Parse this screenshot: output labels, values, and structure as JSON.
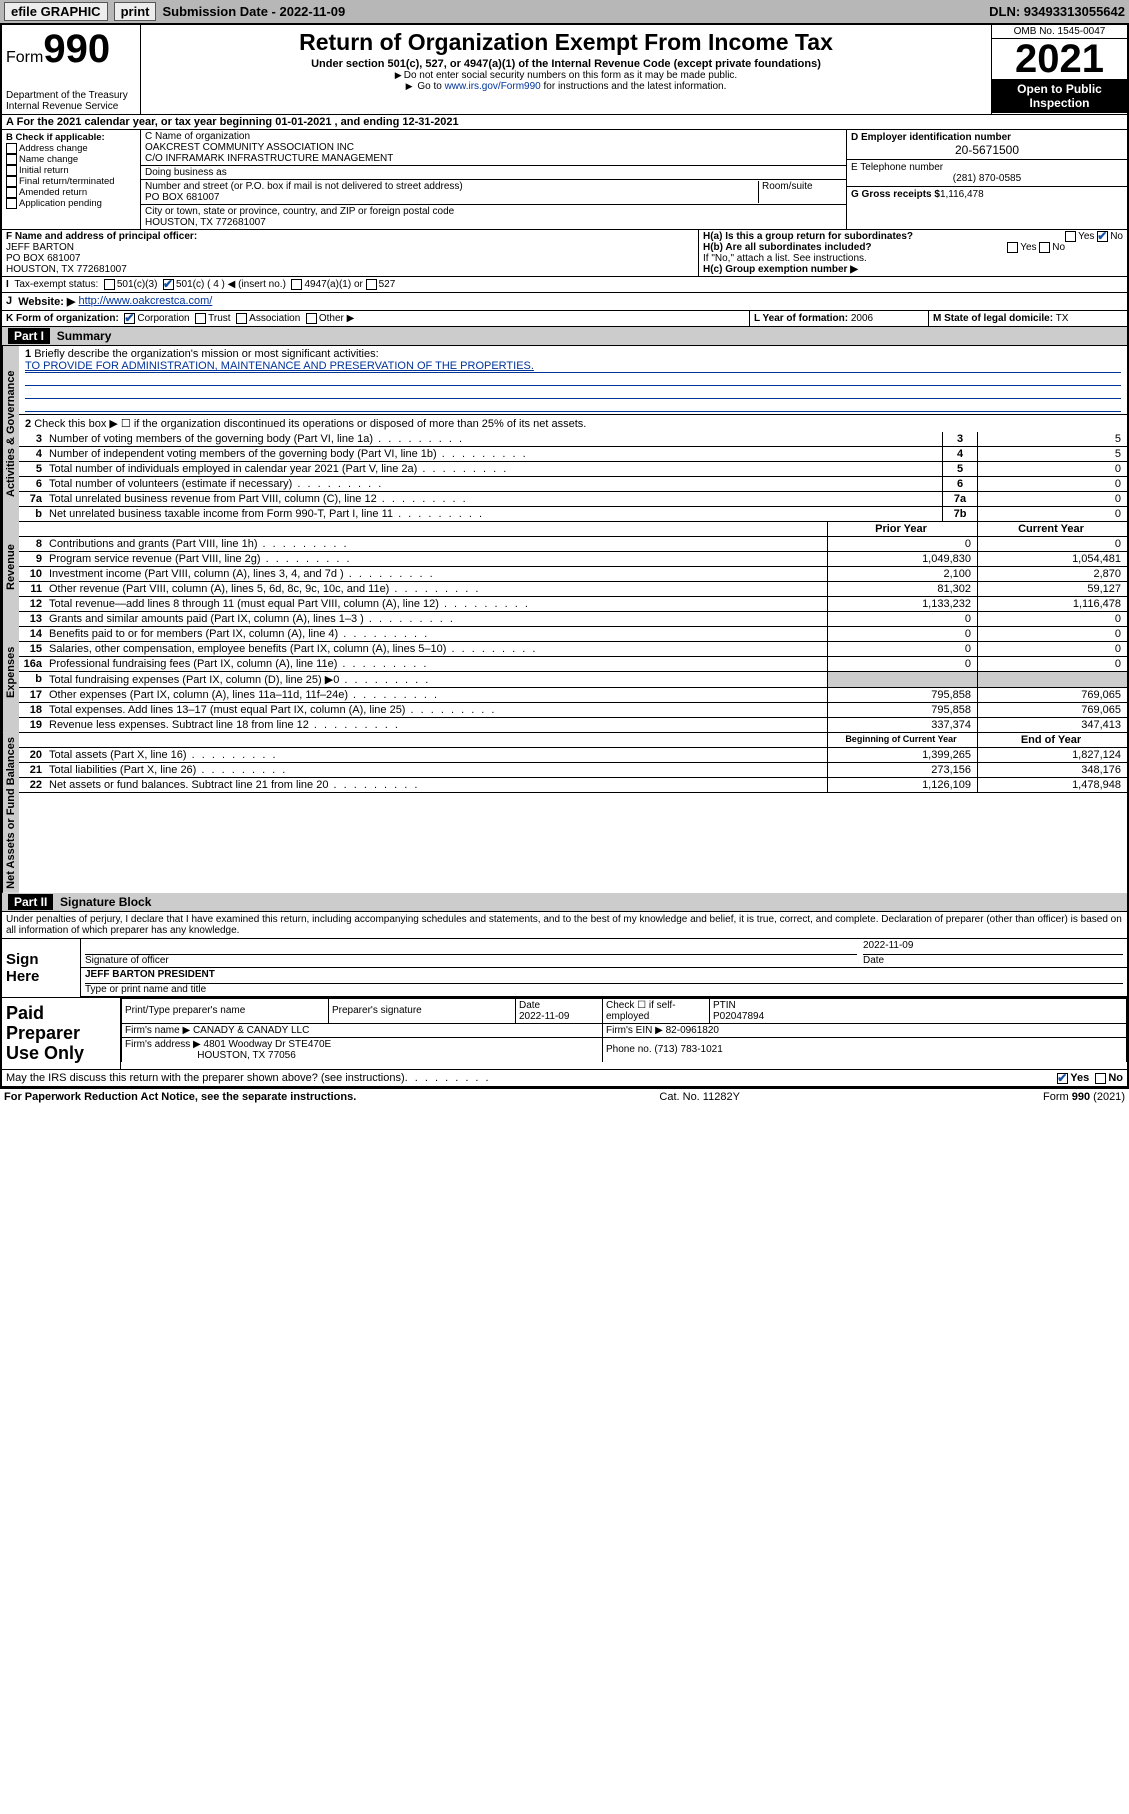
{
  "topbar": {
    "efile": "efile GRAPHIC",
    "print": "print",
    "sub_lbl": "Submission Date - 2022-11-09",
    "dln": "DLN: 93493313055642"
  },
  "header": {
    "form": "Form",
    "formno": "990",
    "dept": "Department of the Treasury",
    "irs": "Internal Revenue Service",
    "title": "Return of Organization Exempt From Income Tax",
    "sub1": "Under section 501(c), 527, or 4947(a)(1) of the Internal Revenue Code (except private foundations)",
    "sub2": "Do not enter social security numbers on this form as it may be made public.",
    "sub3_pre": "Go to ",
    "sub3_link": "www.irs.gov/Form990",
    "sub3_post": " for instructions and the latest information.",
    "omb": "OMB No. 1545-0047",
    "year": "2021",
    "inspect": "Open to Public Inspection"
  },
  "a_line": "For the 2021 calendar year, or tax year beginning 01-01-2021   , and ending 12-31-2021",
  "b": {
    "hdr": "B Check if applicable:",
    "addr": "Address change",
    "name": "Name change",
    "init": "Initial return",
    "final": "Final return/terminated",
    "amend": "Amended return",
    "app": "Application pending"
  },
  "c": {
    "lbl": "C Name of organization",
    "name1": "OAKCREST COMMUNITY ASSOCIATION INC",
    "name2": "C/O INFRAMARK INFRASTRUCTURE MANAGEMENT",
    "dba": "Doing business as",
    "street_lbl": "Number and street (or P.O. box if mail is not delivered to street address)",
    "room_lbl": "Room/suite",
    "street": "PO BOX 681007",
    "city_lbl": "City or town, state or province, country, and ZIP or foreign postal code",
    "city": "HOUSTON, TX  772681007"
  },
  "d": {
    "lbl": "D Employer identification number",
    "val": "20-5671500"
  },
  "e": {
    "lbl": "E Telephone number",
    "val": "(281) 870-0585"
  },
  "g": {
    "lbl": "G Gross receipts $",
    "val": "1,116,478"
  },
  "f": {
    "lbl": "F  Name and address of principal officer:",
    "name": "JEFF BARTON",
    "addr1": "PO BOX 681007",
    "addr2": "HOUSTON, TX  772681007"
  },
  "h": {
    "a": "H(a)  Is this a group return for subordinates?",
    "b": "H(b)  Are all subordinates included?",
    "bnote": "If \"No,\" attach a list. See instructions.",
    "c": "H(c)  Group exemption number ▶"
  },
  "i": {
    "lbl": "Tax-exempt status:",
    "c3": "501(c)(3)",
    "c4": "501(c) ( 4 ) ◀ (insert no.)",
    "a1": "4947(a)(1) or",
    "s527": "527"
  },
  "j": {
    "lbl": "Website: ▶",
    "val": "http://www.oakcrestca.com/"
  },
  "k": {
    "lbl": "K Form of organization:",
    "corp": "Corporation",
    "trust": "Trust",
    "assoc": "Association",
    "other": "Other ▶"
  },
  "l": {
    "lbl": "L Year of formation:",
    "val": "2006"
  },
  "m": {
    "lbl": "M State of legal domicile:",
    "val": "TX"
  },
  "part1": {
    "hdr": "Part I",
    "title": "Summary"
  },
  "tabs": {
    "gov": "Activities & Governance",
    "rev": "Revenue",
    "exp": "Expenses",
    "net": "Net Assets or Fund Balances"
  },
  "l1": {
    "lbl": "Briefly describe the organization's mission or most significant activities:",
    "val": "TO PROVIDE FOR ADMINISTRATION, MAINTENANCE AND PRESERVATION OF THE PROPERTIES."
  },
  "l2": "Check this box ▶ ☐  if the organization discontinued its operations or disposed of more than 25% of its net assets.",
  "lines_gov": [
    {
      "n": "3",
      "t": "Number of voting members of the governing body (Part VI, line 1a)",
      "b": "3",
      "v": "5"
    },
    {
      "n": "4",
      "t": "Number of independent voting members of the governing body (Part VI, line 1b)",
      "b": "4",
      "v": "5"
    },
    {
      "n": "5",
      "t": "Total number of individuals employed in calendar year 2021 (Part V, line 2a)",
      "b": "5",
      "v": "0"
    },
    {
      "n": "6",
      "t": "Total number of volunteers (estimate if necessary)",
      "b": "6",
      "v": "0"
    },
    {
      "n": "7a",
      "t": "Total unrelated business revenue from Part VIII, column (C), line 12",
      "b": "7a",
      "v": "0"
    },
    {
      "n": "b",
      "t": "Net unrelated business taxable income from Form 990-T, Part I, line 11",
      "b": "7b",
      "v": "0"
    }
  ],
  "col_hdr": {
    "prior": "Prior Year",
    "curr": "Current Year"
  },
  "lines_rev": [
    {
      "n": "8",
      "t": "Contributions and grants (Part VIII, line 1h)",
      "p": "0",
      "c": "0"
    },
    {
      "n": "9",
      "t": "Program service revenue (Part VIII, line 2g)",
      "p": "1,049,830",
      "c": "1,054,481"
    },
    {
      "n": "10",
      "t": "Investment income (Part VIII, column (A), lines 3, 4, and 7d )",
      "p": "2,100",
      "c": "2,870"
    },
    {
      "n": "11",
      "t": "Other revenue (Part VIII, column (A), lines 5, 6d, 8c, 9c, 10c, and 11e)",
      "p": "81,302",
      "c": "59,127"
    },
    {
      "n": "12",
      "t": "Total revenue—add lines 8 through 11 (must equal Part VIII, column (A), line 12)",
      "p": "1,133,232",
      "c": "1,116,478"
    }
  ],
  "lines_exp": [
    {
      "n": "13",
      "t": "Grants and similar amounts paid (Part IX, column (A), lines 1–3 )",
      "p": "0",
      "c": "0"
    },
    {
      "n": "14",
      "t": "Benefits paid to or for members (Part IX, column (A), line 4)",
      "p": "0",
      "c": "0"
    },
    {
      "n": "15",
      "t": "Salaries, other compensation, employee benefits (Part IX, column (A), lines 5–10)",
      "p": "0",
      "c": "0"
    },
    {
      "n": "16a",
      "t": "Professional fundraising fees (Part IX, column (A), line 11e)",
      "p": "0",
      "c": "0"
    },
    {
      "n": "b",
      "t": "Total fundraising expenses (Part IX, column (D), line 25) ▶0",
      "p": "",
      "c": "",
      "shade": true
    },
    {
      "n": "17",
      "t": "Other expenses (Part IX, column (A), lines 11a–11d, 11f–24e)",
      "p": "795,858",
      "c": "769,065"
    },
    {
      "n": "18",
      "t": "Total expenses. Add lines 13–17 (must equal Part IX, column (A), line 25)",
      "p": "795,858",
      "c": "769,065"
    },
    {
      "n": "19",
      "t": "Revenue less expenses. Subtract line 18 from line 12",
      "p": "337,374",
      "c": "347,413"
    }
  ],
  "col_hdr2": {
    "beg": "Beginning of Current Year",
    "end": "End of Year"
  },
  "lines_net": [
    {
      "n": "20",
      "t": "Total assets (Part X, line 16)",
      "p": "1,399,265",
      "c": "1,827,124"
    },
    {
      "n": "21",
      "t": "Total liabilities (Part X, line 26)",
      "p": "273,156",
      "c": "348,176"
    },
    {
      "n": "22",
      "t": "Net assets or fund balances. Subtract line 21 from line 20",
      "p": "1,126,109",
      "c": "1,478,948"
    }
  ],
  "part2": {
    "hdr": "Part II",
    "title": "Signature Block"
  },
  "decl": "Under penalties of perjury, I declare that I have examined this return, including accompanying schedules and statements, and to the best of my knowledge and belief, it is true, correct, and complete. Declaration of preparer (other than officer) is based on all information of which preparer has any knowledge.",
  "sign": {
    "here": "Sign Here",
    "sig_lbl": "Signature of officer",
    "date_lbl": "Date",
    "date": "2022-11-09",
    "name": "JEFF BARTON  PRESIDENT",
    "name_lbl": "Type or print name and title"
  },
  "prep": {
    "hdr": "Paid Preparer Use Only",
    "pt_lbl": "Print/Type preparer's name",
    "sig_lbl": "Preparer's signature",
    "date_lbl": "Date",
    "date": "2022-11-09",
    "chk_lbl": "Check ☐ if self-employed",
    "ptin_lbl": "PTIN",
    "ptin": "P02047894",
    "firm_lbl": "Firm's name    ▶",
    "firm": "CANADY & CANADY LLC",
    "ein_lbl": "Firm's EIN ▶",
    "ein": "82-0961820",
    "addr_lbl": "Firm's address ▶",
    "addr1": "4801 Woodway Dr STE470E",
    "addr2": "HOUSTON, TX  77056",
    "phone_lbl": "Phone no.",
    "phone": "(713) 783-1021"
  },
  "may": "May the IRS discuss this return with the preparer shown above? (see instructions)",
  "footer": {
    "pra": "For Paperwork Reduction Act Notice, see the separate instructions.",
    "cat": "Cat. No. 11282Y",
    "form": "Form 990 (2021)"
  },
  "yesno": {
    "yes": "Yes",
    "no": "No"
  }
}
